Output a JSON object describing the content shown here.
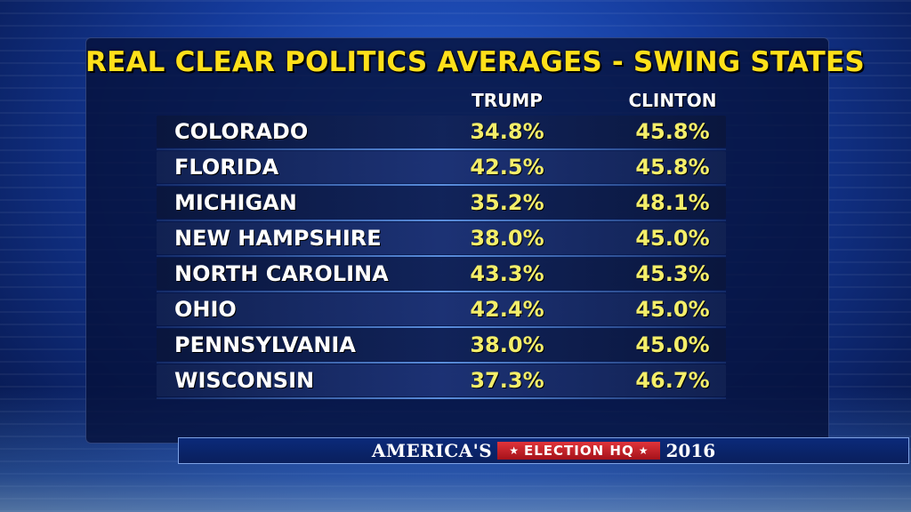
{
  "title": "REAL CLEAR POLITICS AVERAGES - SWING STATES",
  "columns": {
    "trump": "TRUMP",
    "clinton": "CLINTON"
  },
  "rows": [
    {
      "state": "COLORADO",
      "trump": "34.8%",
      "clinton": "45.8%"
    },
    {
      "state": "FLORIDA",
      "trump": "42.5%",
      "clinton": "45.8%"
    },
    {
      "state": "MICHIGAN",
      "trump": "35.2%",
      "clinton": "48.1%"
    },
    {
      "state": "NEW HAMPSHIRE",
      "trump": "38.0%",
      "clinton": "45.0%"
    },
    {
      "state": "NORTH CAROLINA",
      "trump": "43.3%",
      "clinton": "45.3%"
    },
    {
      "state": "OHIO",
      "trump": "42.4%",
      "clinton": "45.0%"
    },
    {
      "state": "PENNSYLVANIA",
      "trump": "38.0%",
      "clinton": "45.0%"
    },
    {
      "state": "WISCONSIN",
      "trump": "37.3%",
      "clinton": "46.7%"
    }
  ],
  "banner": {
    "brand": "AMERICA'S",
    "badge": "ELECTION HQ",
    "year": "2016",
    "star_icon": "star-icon"
  },
  "colors": {
    "title": "#ffe01a",
    "values": "#f4ee6a",
    "badge": "#c8202a"
  }
}
